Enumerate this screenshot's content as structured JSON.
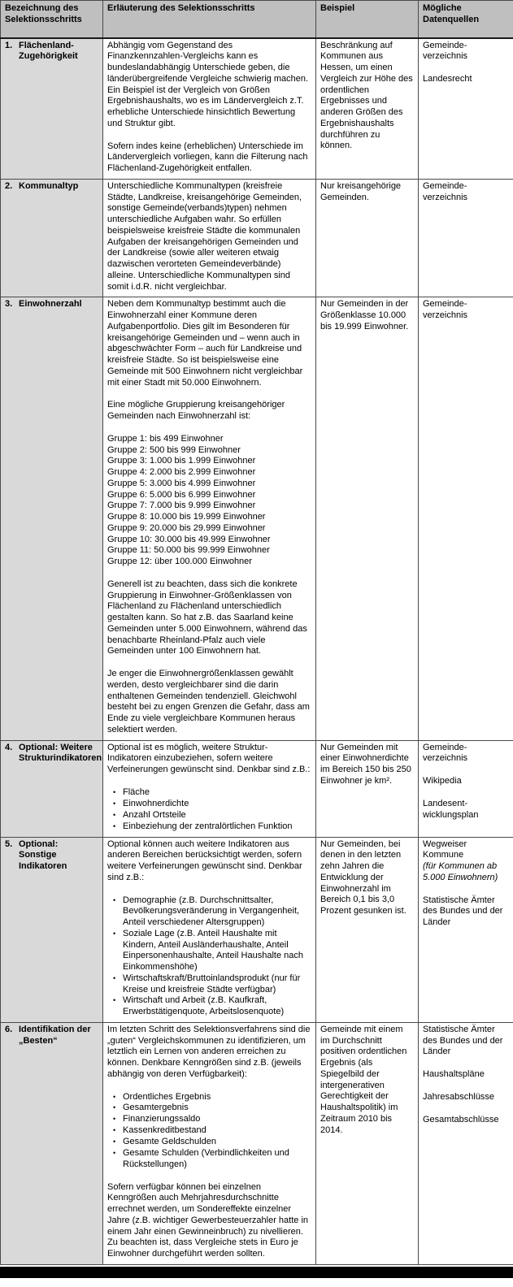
{
  "colors": {
    "header_bg": "#bfbfbf",
    "first_col_bg": "#d9d9d9",
    "border": "#4a4a4a",
    "bottom_bar": "#000000"
  },
  "table": {
    "columns": [
      "Bezeichnung des Selektionsschritts",
      "Erläuterung des Selektionsschritts",
      "Beispiel",
      "Mögliche Datenquellen"
    ],
    "rows": [
      {
        "number": "1.",
        "title": "Flächenland-Zugehörigkeit",
        "explanation": [
          {
            "type": "p",
            "text": "Abhängig vom Gegenstand des Finanzkennzahlen-Vergleichs kann es bundeslandabhängig Unterschiede geben, die länderübergreifende Vergleiche schwierig machen. Ein Beispiel ist der Vergleich von Größen Ergebnishaushalts, wo es im Ländervergleich z.T. erhebliche Unterschiede hinsichtlich Bewertung und Struktur gibt."
          },
          {
            "type": "p",
            "text": "Sofern indes keine (erheblichen) Unterschiede im Ländervergleich vorliegen, kann die Filterung nach Flächenland-Zugehörigkeit entfallen."
          }
        ],
        "example": "Beschränkung auf Kommunen aus Hessen, um einen Vergleich zur Höhe des ordentlichen Ergebnisses und anderen Größen des Ergebnishaushalts durchführen zu können.",
        "sources": [
          {
            "text": "Gemeinde-verzeichnis"
          },
          {
            "text": "Landesrecht"
          }
        ]
      },
      {
        "number": "2.",
        "title": "Kommunaltyp",
        "explanation": [
          {
            "type": "p",
            "text": "Unterschiedliche Kommunaltypen (kreisfreie Städte, Landkreise, kreisangehörige Gemeinden, sonstige Gemeinde(verbands)typen) nehmen unterschiedliche Aufgaben wahr. So erfüllen beispielsweise kreisfreie Städte die kommunalen Aufgaben der kreisangehörigen Gemeinden und der Landkreise (sowie aller weiteren etwaig dazwischen verorteten Gemeindeverbände) alleine. Unterschiedliche Kommunaltypen sind somit i.d.R. nicht vergleichbar."
          }
        ],
        "example": "Nur kreisangehörige Gemeinden.",
        "sources": [
          {
            "text": "Gemeinde-verzeichnis"
          }
        ]
      },
      {
        "number": "3.",
        "title": "Einwohnerzahl",
        "explanation": [
          {
            "type": "p",
            "text": "Neben dem Kommunaltyp bestimmt auch die Einwohnerzahl einer Kommune deren Aufgabenportfolio. Dies gilt im Besonderen für kreisangehörige Gemeinden und – wenn auch in abgeschwächter Form – auch für Landkreise und kreisfreie Städte. So ist beispielsweise eine Gemeinde mit 500 Einwohnern nicht vergleichbar mit einer Stadt mit 50.000 Einwohnern."
          },
          {
            "type": "p",
            "text": "Eine mögliche Gruppierung kreisangehöriger Gemeinden nach Einwohnerzahl ist:"
          },
          {
            "type": "lines",
            "items": [
              "Gruppe 1: bis 499 Einwohner",
              "Gruppe 2: 500 bis 999 Einwohner",
              "Gruppe 3: 1.000 bis 1.999 Einwohner",
              "Gruppe 4: 2.000 bis 2.999 Einwohner",
              "Gruppe 5: 3.000 bis 4.999 Einwohner",
              "Gruppe 6: 5.000 bis 6.999 Einwohner",
              "Gruppe 7: 7.000 bis 9.999 Einwohner",
              "Gruppe 8: 10.000 bis 19.999 Einwohner",
              "Gruppe 9: 20.000 bis 29.999 Einwohner",
              "Gruppe 10: 30.000 bis 49.999 Einwohner",
              "Gruppe 11: 50.000 bis 99.999 Einwohner",
              "Gruppe 12: über 100.000 Einwohner"
            ]
          },
          {
            "type": "p",
            "text": "Generell ist zu beachten, dass sich die konkrete Gruppierung in Einwohner-Größenklassen von Flächenland zu Flächenland unterschiedlich gestalten kann. So hat z.B. das Saarland keine Gemeinden unter 5.000 Einwohnern, während das benachbarte Rheinland-Pfalz auch viele Gemeinden unter 100 Einwohnern hat."
          },
          {
            "type": "p",
            "text": "Je enger die Einwohnergrößenklassen gewählt werden, desto vergleichbarer sind die darin enthaltenen Gemeinden tendenziell. Gleichwohl besteht bei zu engen Grenzen die Gefahr, dass am Ende zu viele vergleichbare Kommunen heraus selektiert werden."
          }
        ],
        "example": "Nur Gemeinden in der Größenklasse 10.000 bis 19.999 Einwohner.",
        "sources": [
          {
            "text": "Gemeinde-verzeichnis"
          }
        ]
      },
      {
        "number": "4.",
        "title": "Optional: Weitere Strukturindikatoren",
        "explanation": [
          {
            "type": "p",
            "text": "Optional ist es möglich, weitere Struktur-Indikatoren einzubeziehen, sofern weitere Verfeinerungen gewünscht sind. Denkbar sind z.B.:"
          },
          {
            "type": "bullets",
            "items": [
              "Fläche",
              "Einwohnerdichte",
              "Anzahl Ortsteile",
              "Einbeziehung der zentralörtlichen Funktion"
            ]
          }
        ],
        "example": "Nur Gemeinden mit einer Einwohnerdichte im Bereich 150 bis 250 Einwohner je km².",
        "sources": [
          {
            "text": "Gemeinde-verzeichnis"
          },
          {
            "text": "Wikipedia"
          },
          {
            "text": "Landesent-wicklungsplan"
          }
        ]
      },
      {
        "number": "5.",
        "title": "Optional: Sonstige Indikatoren",
        "explanation": [
          {
            "type": "p",
            "text": "Optional können auch weitere Indikatoren aus anderen Bereichen berücksichtigt werden, sofern weitere Verfeinerungen gewünscht sind. Denkbar sind z.B.:"
          },
          {
            "type": "bullets",
            "items": [
              "Demographie (z.B. Durchschnittsalter, Bevölkerungsveränderung in Vergangenheit, Anteil verschiedener Altersgruppen)",
              "Soziale Lage (z.B. Anteil Haushalte mit Kindern, Anteil Ausländerhaushalte, Anteil Einpersonenhaushalte, Anteil Haushalte nach Einkommenshöhe)",
              "Wirtschaftskraft/Bruttoinlandsprodukt (nur für Kreise und kreisfreie Städte verfügbar)",
              "Wirtschaft und Arbeit (z.B. Kaufkraft, Erwerbstätigenquote, Arbeitslosenquote)"
            ]
          }
        ],
        "example": "Nur Gemeinden, bei denen in den letzten zehn Jahren die Entwicklung der Einwohnerzahl im Bereich 0,1 bis 3,0 Prozent gesunken ist.",
        "sources": [
          {
            "text": "Wegweiser Kommune",
            "gap_after": false
          },
          {
            "text": "(für Kommunen ab 5.000 Einwohnern)",
            "italic": true
          },
          {
            "text": "Statistische Ämter des Bundes und der Länder"
          }
        ]
      },
      {
        "number": "6.",
        "title": "Identifikation der „Besten“",
        "explanation": [
          {
            "type": "p",
            "text": "Im letzten Schritt des Selektionsverfahrens sind die „guten“ Vergleichskommunen zu identifizieren, um letztlich ein Lernen von anderen erreichen zu können. Denkbare Kenngrößen sind z.B. (jeweils abhängig von deren Verfügbarkeit):"
          },
          {
            "type": "bullets",
            "items": [
              "Ordentliches Ergebnis",
              "Gesamtergebnis",
              "Finanzierungssaldo",
              "Kassenkreditbestand",
              "Gesamte Geldschulden",
              "Gesamte Schulden (Verbindlichkeiten und Rückstellungen)"
            ]
          },
          {
            "type": "p",
            "text": "Sofern verfügbar können bei einzelnen Kenngrößen auch Mehrjahresdurchschnitte errechnet werden, um Sondereffekte einzelner Jahre (z.B. wichtiger Gewerbesteuerzahler hatte in einem Jahr einen Gewinneinbruch) zu nivellieren. Zu beachten ist, dass Vergleiche stets in Euro je Einwohner durchgeführt werden sollten."
          }
        ],
        "example": "Gemeinde mit einem im Durchschnitt positiven ordentlichen Ergebnis (als Spiegelbild der intergenerativen Gerechtigkeit der Haushaltspolitik) im Zeitraum 2010 bis 2014.",
        "sources": [
          {
            "text": "Statistische Ämter des Bundes und der Länder"
          },
          {
            "text": "Haushaltspläne"
          },
          {
            "text": "Jahresabschlüsse"
          },
          {
            "text": "Gesamtabschlüsse"
          }
        ]
      }
    ]
  }
}
